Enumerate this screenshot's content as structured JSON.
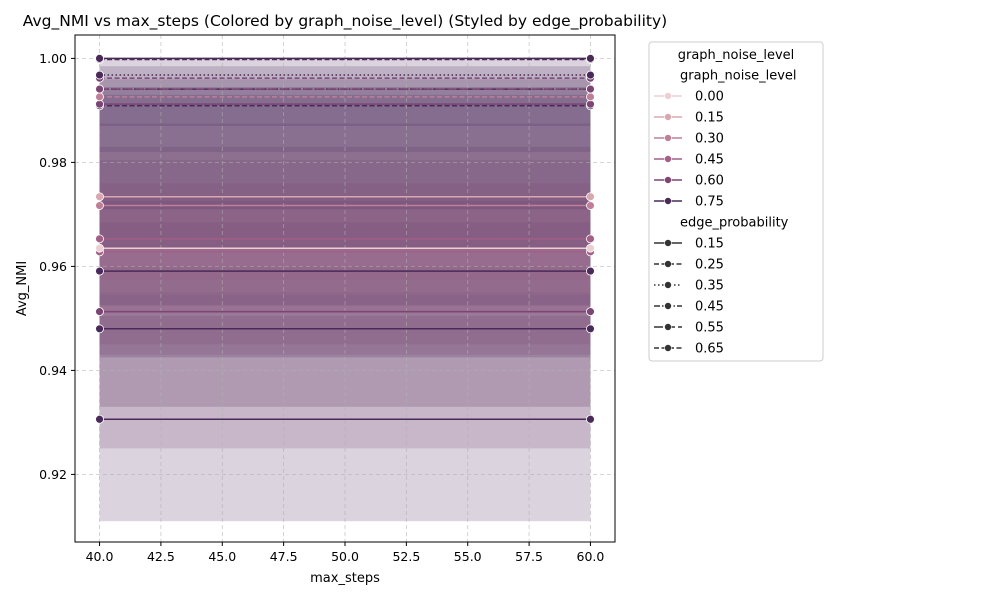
{
  "chart_data": {
    "type": "line",
    "title": "Avg_NMI vs max_steps (Colored by graph_noise_level) (Styled by edge_probability)",
    "xlabel": "max_steps",
    "ylabel": "Avg_NMI",
    "xlim": [
      39,
      61
    ],
    "ylim": [
      0.907,
      1.0045
    ],
    "xticks": [
      40.0,
      42.5,
      45.0,
      47.5,
      50.0,
      52.5,
      55.0,
      57.5,
      60.0
    ],
    "xtick_labels": [
      "40.0",
      "42.5",
      "45.0",
      "47.5",
      "50.0",
      "52.5",
      "55.0",
      "57.5",
      "60.0"
    ],
    "yticks": [
      0.92,
      0.94,
      0.96,
      0.98,
      1.0
    ],
    "ytick_labels": [
      "0.92",
      "0.94",
      "0.96",
      "0.98",
      "1.00"
    ],
    "grid": true,
    "legend_placement": "outside-right",
    "legend": {
      "title": "graph_noise_level",
      "hue_heading": "graph_noise_level",
      "style_heading": "edge_probability",
      "hue_entries": [
        {
          "label": "0.00",
          "color": "#ebcfd3"
        },
        {
          "label": "0.15",
          "color": "#d8a7b0"
        },
        {
          "label": "0.30",
          "color": "#c07f99"
        },
        {
          "label": "0.45",
          "color": "#a45f87"
        },
        {
          "label": "0.60",
          "color": "#7b4574"
        },
        {
          "label": "0.75",
          "color": "#4a2a58"
        }
      ],
      "style_entries": [
        {
          "label": "0.15",
          "dash": "solid"
        },
        {
          "label": "0.25",
          "dash": "dashed"
        },
        {
          "label": "0.35",
          "dash": "dotted"
        },
        {
          "label": "0.45",
          "dash": "dashdot"
        },
        {
          "label": "0.55",
          "dash": "longdash"
        },
        {
          "label": "0.65",
          "dash": "dashed"
        }
      ]
    },
    "x": [
      40,
      60
    ],
    "bands": [
      {
        "lower": 0.911,
        "upper": 0.9505,
        "color": "#4a2a58"
      },
      {
        "lower": 0.925,
        "upper": 0.96,
        "color": "#7b4574"
      },
      {
        "lower": 0.933,
        "upper": 0.9685,
        "color": "#4a2a58"
      },
      {
        "lower": 0.9425,
        "upper": 0.9725,
        "color": "#4a2a58"
      },
      {
        "lower": 0.951,
        "upper": 0.976,
        "color": "#a45f87"
      },
      {
        "lower": 0.955,
        "upper": 0.982,
        "color": "#ebcfd3"
      },
      {
        "lower": 0.9545,
        "upper": 0.9735,
        "color": "#d8a7b0"
      },
      {
        "lower": 0.9575,
        "upper": 0.9805,
        "color": "#c07f99"
      },
      {
        "lower": 0.943,
        "upper": 0.983,
        "color": "#7b4574"
      },
      {
        "lower": 0.945,
        "upper": 0.9875,
        "color": "#7b4574"
      },
      {
        "lower": 0.9525,
        "upper": 0.993,
        "color": "#4a2a58"
      },
      {
        "lower": 0.9635,
        "upper": 0.9945,
        "color": "#4a2a58"
      },
      {
        "lower": 0.971,
        "upper": 0.996,
        "color": "#4a2a58"
      },
      {
        "lower": 0.982,
        "upper": 0.9985,
        "color": "#4a2a58"
      },
      {
        "lower": 0.987,
        "upper": 1.0,
        "color": "#4a2a58"
      }
    ],
    "series": [
      {
        "hue": "0.75",
        "style": "solid",
        "color": "#4a2a58",
        "values": [
          0.9306,
          0.9306
        ]
      },
      {
        "hue": "0.75",
        "style": "solid",
        "color": "#4a2a58",
        "values": [
          0.948,
          0.948
        ]
      },
      {
        "hue": "0.60",
        "style": "solid",
        "color": "#7b4574",
        "values": [
          0.9513,
          0.9513
        ]
      },
      {
        "hue": "0.75",
        "style": "solid",
        "color": "#4a2a58",
        "values": [
          0.9591,
          0.9591
        ]
      },
      {
        "hue": "0.45",
        "style": "solid",
        "color": "#a45f87",
        "values": [
          0.9628,
          0.9628
        ]
      },
      {
        "hue": "0.00",
        "style": "solid",
        "color": "#ebcfd3",
        "values": [
          0.9635,
          0.9635
        ]
      },
      {
        "hue": "0.45",
        "style": "solid",
        "color": "#a45f87",
        "values": [
          0.9653,
          0.9653
        ]
      },
      {
        "hue": "0.30",
        "style": "solid",
        "color": "#c07f99",
        "values": [
          0.9717,
          0.9717
        ]
      },
      {
        "hue": "0.15",
        "style": "solid",
        "color": "#d8a7b0",
        "values": [
          0.9734,
          0.9734
        ]
      },
      {
        "hue": "0.75",
        "style": "dashed",
        "color": "#4a2a58",
        "values": [
          0.9909,
          0.9909
        ]
      },
      {
        "hue": "0.60",
        "style": "solid",
        "color": "#7b4574",
        "values": [
          0.9912,
          0.9912
        ]
      },
      {
        "hue": "0.30",
        "style": "dashed",
        "color": "#c07f99",
        "values": [
          0.9926,
          0.9926
        ]
      },
      {
        "hue": "0.75",
        "style": "dashdot",
        "color": "#4a2a58",
        "values": [
          0.9941,
          0.9941
        ]
      },
      {
        "hue": "0.60",
        "style": "longdash",
        "color": "#7b4574",
        "values": [
          0.9941,
          0.9941
        ]
      },
      {
        "hue": "0.60",
        "style": "dashed",
        "color": "#7b4574",
        "values": [
          0.9962,
          0.9962
        ]
      },
      {
        "hue": "0.75",
        "style": "dotted",
        "color": "#4a2a58",
        "values": [
          0.9968,
          0.9968
        ]
      },
      {
        "hue": "0.75",
        "style": "dashed",
        "color": "#4a2a58",
        "values": [
          0.9998,
          0.9998
        ]
      },
      {
        "hue": "0.75",
        "style": "solid",
        "color": "#4a2a58",
        "values": [
          1.0,
          1.0
        ]
      }
    ]
  }
}
